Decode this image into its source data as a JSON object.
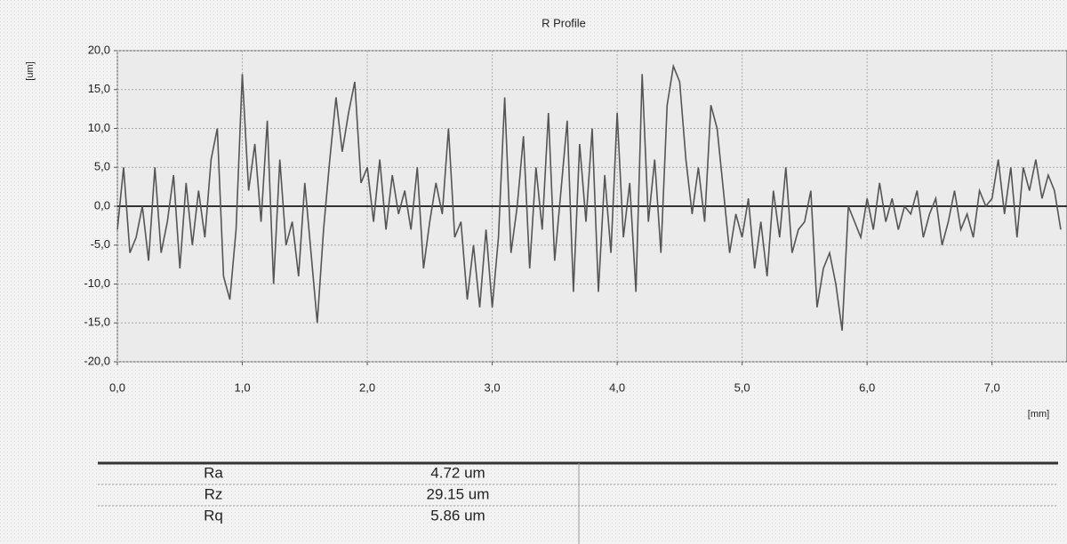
{
  "chart_data": {
    "type": "line",
    "title": "R Profile",
    "y_label": "[um]",
    "x_label": "[mm]",
    "x": [
      0.0,
      0.05,
      0.1,
      0.15,
      0.2,
      0.25,
      0.3,
      0.35,
      0.4,
      0.45,
      0.5,
      0.55,
      0.6,
      0.65,
      0.7,
      0.75,
      0.8,
      0.85,
      0.9,
      0.95,
      1.0,
      1.05,
      1.1,
      1.15,
      1.2,
      1.25,
      1.3,
      1.35,
      1.4,
      1.45,
      1.5,
      1.55,
      1.6,
      1.65,
      1.7,
      1.75,
      1.8,
      1.85,
      1.9,
      1.95,
      2.0,
      2.05,
      2.1,
      2.15,
      2.2,
      2.25,
      2.3,
      2.35,
      2.4,
      2.45,
      2.5,
      2.55,
      2.6,
      2.65,
      2.7,
      2.75,
      2.8,
      2.85,
      2.9,
      2.95,
      3.0,
      3.05,
      3.1,
      3.15,
      3.2,
      3.25,
      3.3,
      3.35,
      3.4,
      3.45,
      3.5,
      3.55,
      3.6,
      3.65,
      3.7,
      3.75,
      3.8,
      3.85,
      3.9,
      3.95,
      4.0,
      4.05,
      4.1,
      4.15,
      4.2,
      4.25,
      4.3,
      4.35,
      4.4,
      4.45,
      4.5,
      4.55,
      4.6,
      4.65,
      4.7,
      4.75,
      4.8,
      4.85,
      4.9,
      4.95,
      5.0,
      5.05,
      5.1,
      5.15,
      5.2,
      5.25,
      5.3,
      5.35,
      5.4,
      5.45,
      5.5,
      5.55,
      5.6,
      5.65,
      5.7,
      5.75,
      5.8,
      5.85,
      5.9,
      5.95,
      6.0,
      6.05,
      6.1,
      6.15,
      6.2,
      6.25,
      6.3,
      6.35,
      6.4,
      6.45,
      6.5,
      6.55,
      6.6,
      6.65,
      6.7,
      6.75,
      6.8,
      6.85,
      6.9,
      6.95,
      7.0,
      7.05,
      7.1,
      7.15,
      7.2,
      7.25,
      7.3,
      7.35,
      7.4,
      7.45,
      7.5,
      7.55
    ],
    "values": [
      -3,
      5,
      -6,
      -4,
      0,
      -7,
      5,
      -6,
      -2,
      4,
      -8,
      3,
      -5,
      2,
      -4,
      6,
      10,
      -9,
      -12,
      -3,
      17,
      2,
      8,
      -2,
      11,
      -10,
      6,
      -5,
      -2,
      -9,
      3,
      -6,
      -15,
      -3,
      6,
      14,
      7,
      12,
      16,
      3,
      5,
      -2,
      6,
      -3,
      4,
      -1,
      2,
      -3,
      5,
      -8,
      -2,
      3,
      -1,
      10,
      -4,
      -2,
      -12,
      -5,
      -13,
      -3,
      -13,
      -4,
      14,
      -6,
      0,
      9,
      -8,
      5,
      -3,
      12,
      -7,
      2,
      11,
      -11,
      8,
      -2,
      10,
      -11,
      4,
      -6,
      12,
      -4,
      3,
      -11,
      17,
      -2,
      6,
      -6,
      13,
      18,
      16,
      6,
      -1,
      5,
      -2,
      13,
      10,
      2,
      -6,
      -1,
      -4,
      1,
      -8,
      -2,
      -9,
      2,
      -4,
      5,
      -6,
      -3,
      -2,
      2,
      -13,
      -8,
      -6,
      -10,
      -16,
      0,
      -2,
      -4,
      1,
      -3,
      3,
      -2,
      1,
      -3,
      0,
      -1,
      2,
      -4,
      -1,
      1,
      -5,
      -2,
      2,
      -3,
      -1,
      -4,
      2,
      0,
      1,
      6,
      -1,
      5,
      -4,
      5,
      2,
      6,
      1,
      4,
      2,
      -3
    ],
    "color": "#555555",
    "xlim": [
      0,
      7.6
    ],
    "ylim": [
      -20,
      20
    ],
    "xticks": [
      {
        "value": 0,
        "label": "0,0"
      },
      {
        "value": 1,
        "label": "1,0"
      },
      {
        "value": 2,
        "label": "2,0"
      },
      {
        "value": 3,
        "label": "3,0"
      },
      {
        "value": 4,
        "label": "4,0"
      },
      {
        "value": 5,
        "label": "5,0"
      },
      {
        "value": 6,
        "label": "6,0"
      },
      {
        "value": 7,
        "label": "7,0"
      }
    ],
    "yticks": [
      {
        "value": -20,
        "label": "-20,0"
      },
      {
        "value": -15,
        "label": "-15,0"
      },
      {
        "value": -10,
        "label": "-10,0"
      },
      {
        "value": -5,
        "label": "-5,0"
      },
      {
        "value": 0,
        "label": "0,0"
      },
      {
        "value": 5,
        "label": "5,0"
      },
      {
        "value": 10,
        "label": "10,0"
      },
      {
        "value": 15,
        "label": "15,0"
      },
      {
        "value": 20,
        "label": "20,0"
      }
    ],
    "grid": true
  },
  "table": {
    "rows": [
      [
        "Ra",
        "4.72 um"
      ],
      [
        "Rz",
        "29.15 um"
      ],
      [
        "Rq",
        "5.86 um"
      ]
    ]
  }
}
